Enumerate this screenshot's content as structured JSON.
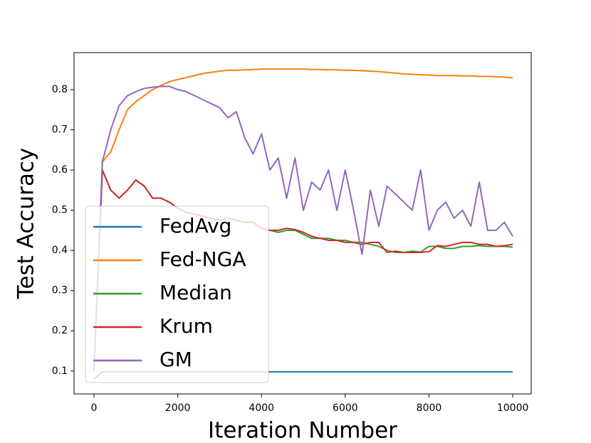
{
  "chart_data": {
    "type": "line",
    "xlabel": "Iteration Number",
    "ylabel": "Test Accuracy",
    "xlim": [
      -476,
      10440
    ],
    "ylim": [
      0.043,
      0.892
    ],
    "xticks": [
      0,
      2000,
      4000,
      6000,
      8000,
      10000
    ],
    "yticks": [
      0.1,
      0.2,
      0.3,
      0.4,
      0.5,
      0.6,
      0.7,
      0.8
    ],
    "legend": "lower left",
    "x": [
      0,
      200,
      400,
      600,
      800,
      1000,
      1200,
      1400,
      1600,
      1800,
      2000,
      2200,
      2400,
      2600,
      2800,
      3000,
      3200,
      3400,
      3600,
      3800,
      4000,
      4200,
      4400,
      4600,
      4800,
      5000,
      5200,
      5400,
      5600,
      5800,
      6000,
      6200,
      6400,
      6600,
      6800,
      7000,
      7200,
      7400,
      7600,
      7800,
      8000,
      8200,
      8400,
      8600,
      8800,
      9000,
      9200,
      9400,
      9600,
      9800,
      10000
    ],
    "series": [
      {
        "name": "FedAvg",
        "color": "#1f77b4",
        "values": [
          0.08,
          0.098,
          0.098,
          0.098,
          0.098,
          0.098,
          0.098,
          0.098,
          0.098,
          0.098,
          0.098,
          0.098,
          0.098,
          0.098,
          0.098,
          0.098,
          0.098,
          0.098,
          0.098,
          0.098,
          0.098,
          0.098,
          0.098,
          0.098,
          0.098,
          0.098,
          0.098,
          0.098,
          0.098,
          0.098,
          0.098,
          0.098,
          0.098,
          0.098,
          0.098,
          0.098,
          0.098,
          0.098,
          0.098,
          0.098,
          0.098,
          0.098,
          0.098,
          0.098,
          0.098,
          0.098,
          0.098,
          0.098,
          0.098,
          0.098,
          0.098
        ]
      },
      {
        "name": "Fed-NGA",
        "color": "#ff7f0e",
        "values": [
          0.1,
          0.62,
          0.645,
          0.7,
          0.75,
          0.77,
          0.785,
          0.8,
          0.81,
          0.82,
          0.825,
          0.83,
          0.835,
          0.84,
          0.843,
          0.846,
          0.848,
          0.848,
          0.849,
          0.85,
          0.851,
          0.851,
          0.851,
          0.851,
          0.851,
          0.851,
          0.85,
          0.85,
          0.849,
          0.849,
          0.848,
          0.848,
          0.847,
          0.846,
          0.845,
          0.843,
          0.841,
          0.839,
          0.838,
          0.837,
          0.836,
          0.835,
          0.835,
          0.835,
          0.834,
          0.834,
          0.833,
          0.833,
          0.832,
          0.831,
          0.829
        ]
      },
      {
        "name": "Median",
        "color": "#2ca02c",
        "values": [
          0.1,
          0.6,
          0.55,
          0.53,
          0.55,
          0.575,
          0.56,
          0.53,
          0.53,
          0.52,
          0.505,
          0.495,
          0.49,
          0.485,
          0.48,
          0.475,
          0.48,
          0.475,
          0.47,
          0.47,
          0.455,
          0.45,
          0.445,
          0.45,
          0.45,
          0.44,
          0.43,
          0.43,
          0.43,
          0.425,
          0.425,
          0.42,
          0.42,
          0.415,
          0.41,
          0.4,
          0.395,
          0.395,
          0.398,
          0.396,
          0.41,
          0.41,
          0.405,
          0.405,
          0.41,
          0.41,
          0.412,
          0.41,
          0.41,
          0.41,
          0.408
        ]
      },
      {
        "name": "Krum",
        "color": "#d62728",
        "values": [
          0.1,
          0.6,
          0.55,
          0.53,
          0.55,
          0.575,
          0.56,
          0.53,
          0.53,
          0.52,
          0.505,
          0.495,
          0.49,
          0.485,
          0.48,
          0.475,
          0.48,
          0.475,
          0.47,
          0.47,
          0.455,
          0.45,
          0.45,
          0.455,
          0.452,
          0.445,
          0.435,
          0.43,
          0.425,
          0.425,
          0.42,
          0.42,
          0.415,
          0.42,
          0.42,
          0.395,
          0.398,
          0.395,
          0.395,
          0.395,
          0.397,
          0.412,
          0.41,
          0.415,
          0.42,
          0.42,
          0.415,
          0.415,
          0.41,
          0.412,
          0.415
        ]
      },
      {
        "name": "GM",
        "color": "#9467bd",
        "values": [
          0.1,
          0.62,
          0.7,
          0.76,
          0.785,
          0.795,
          0.803,
          0.806,
          0.808,
          0.808,
          0.8,
          0.795,
          0.785,
          0.775,
          0.765,
          0.755,
          0.73,
          0.745,
          0.68,
          0.64,
          0.69,
          0.6,
          0.63,
          0.53,
          0.63,
          0.5,
          0.57,
          0.55,
          0.6,
          0.5,
          0.6,
          0.5,
          0.39,
          0.55,
          0.46,
          0.56,
          0.54,
          0.52,
          0.5,
          0.6,
          0.45,
          0.5,
          0.52,
          0.48,
          0.5,
          0.46,
          0.57,
          0.45,
          0.45,
          0.47,
          0.435
        ]
      }
    ]
  }
}
